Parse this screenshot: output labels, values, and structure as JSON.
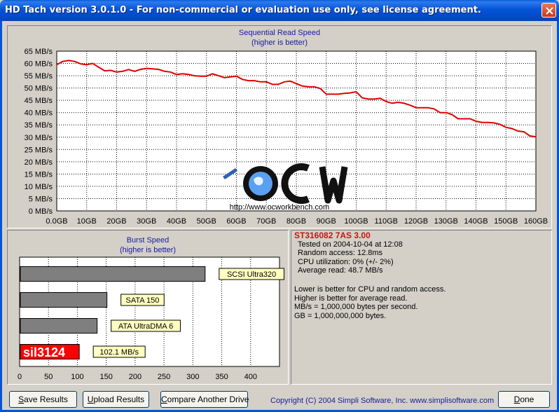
{
  "window": {
    "title": "HD Tach version 3.0.1.0  - For non-commercial or evaluation use only, see license agreement."
  },
  "colors": {
    "title_bar": "#0454d8",
    "read_line": "#e00000",
    "plot_bg": "#ffffff",
    "burst_bar": "#7f7f7f",
    "result_bar": "#ff0000",
    "label_box": "#ffffc0",
    "chart_title": "#1a1aa0",
    "drive_name": "#d01010"
  },
  "read_chart": {
    "title": "Sequential Read Speed",
    "subtitle": "(higher is better)"
  },
  "burst_chart": {
    "title": "Burst Speed",
    "subtitle": "(higher is better)"
  },
  "watermark": {
    "logo_text": "OCW",
    "url": "http://www.ocworkbench.com"
  },
  "chart_data": [
    {
      "type": "line",
      "title": "Sequential Read Speed",
      "subtitle": "(higher is better)",
      "x_unit": "GB",
      "y_unit": "MB/s",
      "xlim": [
        0,
        160
      ],
      "ylim": [
        0,
        65
      ],
      "xticks": [
        "0.0GB",
        "10GB",
        "20GB",
        "30GB",
        "40GB",
        "50GB",
        "60GB",
        "70GB",
        "80GB",
        "90GB",
        "100GB",
        "110GB",
        "120GB",
        "130GB",
        "140GB",
        "150GB",
        "160GB"
      ],
      "yticks": [
        "0 MB/s",
        "5 MB/s",
        "10 MB/s",
        "15 MB/s",
        "20 MB/s",
        "25 MB/s",
        "30 MB/s",
        "35 MB/s",
        "40 MB/s",
        "45 MB/s",
        "50 MB/s",
        "55 MB/s",
        "60 MB/s",
        "65 MB/s"
      ],
      "grid": true,
      "series": [
        {
          "x": [
            0,
            2,
            4,
            6,
            8,
            10,
            12,
            14,
            16,
            18,
            20,
            22,
            24,
            26,
            28,
            30,
            32,
            34,
            36,
            38,
            40,
            42,
            44,
            46,
            48,
            50,
            52,
            54,
            56,
            58,
            60,
            62,
            64,
            66,
            68,
            70,
            72,
            74,
            76,
            78,
            80,
            82,
            84,
            86,
            88,
            90,
            92,
            94,
            96,
            98,
            100,
            102,
            104,
            106,
            108,
            110,
            112,
            114,
            116,
            118,
            120,
            122,
            124,
            126,
            128,
            130,
            132,
            134,
            136,
            138,
            140,
            142,
            144,
            146,
            148,
            150,
            152,
            154,
            156,
            158,
            160
          ],
          "y": [
            59.5,
            60.8,
            61.2,
            60.8,
            59.8,
            59.5,
            60.0,
            58.5,
            57.0,
            57.2,
            56.5,
            56.8,
            57.5,
            56.8,
            57.6,
            58.0,
            57.8,
            57.6,
            56.8,
            56.5,
            55.5,
            55.8,
            55.5,
            55.0,
            54.8,
            54.8,
            55.8,
            55.0,
            54.2,
            54.5,
            54.8,
            53.5,
            53.0,
            53.0,
            52.5,
            52.5,
            51.5,
            51.5,
            52.5,
            52.8,
            51.8,
            50.8,
            50.5,
            50.5,
            49.8,
            47.5,
            47.5,
            47.5,
            47.8,
            48.0,
            48.5,
            46.0,
            45.5,
            45.5,
            45.8,
            44.5,
            43.8,
            44.2,
            43.8,
            43.0,
            42.0,
            42.0,
            42.0,
            41.5,
            40.0,
            40.0,
            39.2,
            37.5,
            37.5,
            37.5,
            36.5,
            36.0,
            36.0,
            35.8,
            35.2,
            34.0,
            33.5,
            32.5,
            32.2,
            30.5,
            30.2
          ]
        }
      ]
    },
    {
      "type": "bar",
      "orientation": "horizontal",
      "title": "Burst Speed",
      "subtitle": "(higher is better)",
      "xlim": [
        0,
        450
      ],
      "xticks": [
        "0",
        "50",
        "100",
        "150",
        "200",
        "250",
        "300",
        "350",
        "400"
      ],
      "grid": true,
      "categories": [
        "SCSI Ultra320",
        "SATA 150",
        "ATA UltraDMA 6",
        "sil3124"
      ],
      "values": [
        320,
        150,
        133,
        102.1
      ],
      "labels": [
        "SCSI Ultra320",
        "SATA 150",
        "ATA UltraDMA 6",
        "102.1 MB/s"
      ]
    }
  ],
  "results": {
    "drive_name": "ST316082 7AS 3.00",
    "tested_on": "Tested on 2004-10-04 at 12:08",
    "random_access": "Random access: 12.8ms",
    "cpu_utilization": "CPU utilization: 0% (+/- 2%)",
    "average_read": "Average read: 48.7 MB/s",
    "notes": [
      "Lower is better for CPU and random access.",
      "Higher is better for average read.",
      "MB/s = 1,000,000 bytes per second.",
      "GB = 1,000,000,000 bytes."
    ]
  },
  "buttons": {
    "save_accel": "S",
    "save_rest": "ave Results",
    "upload_accel": "U",
    "upload_rest": "pload Results",
    "compare_accel": "C",
    "compare_rest": "ompare Another Drive",
    "done_accel": "D",
    "done_rest": "one"
  },
  "footer": {
    "copyright": "Copyright (C) 2004 Simpli Software, Inc. www.simplisoftware.com"
  }
}
